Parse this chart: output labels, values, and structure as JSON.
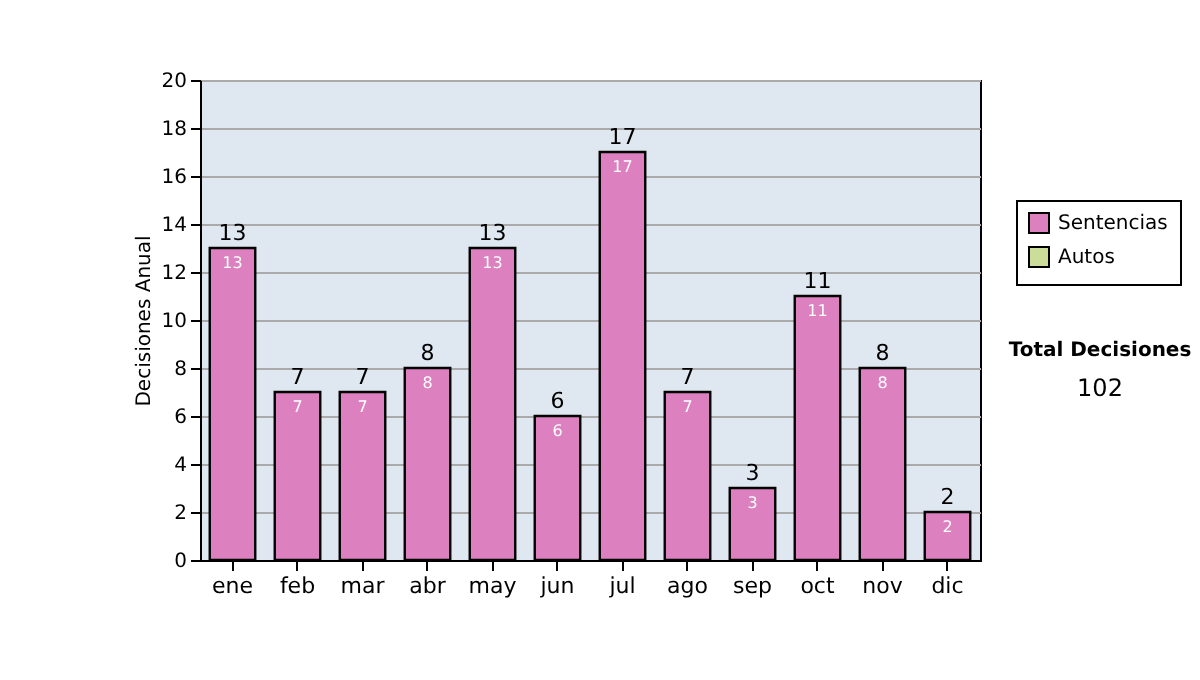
{
  "chart_data": {
    "type": "bar",
    "ylabel": "Decisiones Anual",
    "categories": [
      "ene",
      "feb",
      "mar",
      "abr",
      "may",
      "jun",
      "jul",
      "ago",
      "sep",
      "oct",
      "nov",
      "dic"
    ],
    "series": [
      {
        "name": "Sentencias",
        "color": "#dd80c0",
        "values": [
          13,
          7,
          7,
          8,
          13,
          6,
          17,
          7,
          3,
          11,
          8,
          2
        ]
      },
      {
        "name": "Autos",
        "color": "#ccdd99",
        "values": [
          null,
          null,
          null,
          null,
          null,
          null,
          null,
          null,
          null,
          null,
          null,
          null
        ]
      }
    ],
    "stacked": true,
    "data_labels": true,
    "totals": [
      "13",
      "7",
      "7",
      "8",
      "13",
      "6",
      "17",
      "7",
      "3",
      "11",
      "8",
      "2"
    ],
    "ylim": [
      0,
      20
    ],
    "yticks": [
      0,
      2,
      4,
      6,
      8,
      10,
      12,
      14,
      16,
      18,
      20
    ],
    "grid": "y",
    "legend": "top right",
    "annotations": [
      "Total Decisiones",
      "102"
    ]
  }
}
